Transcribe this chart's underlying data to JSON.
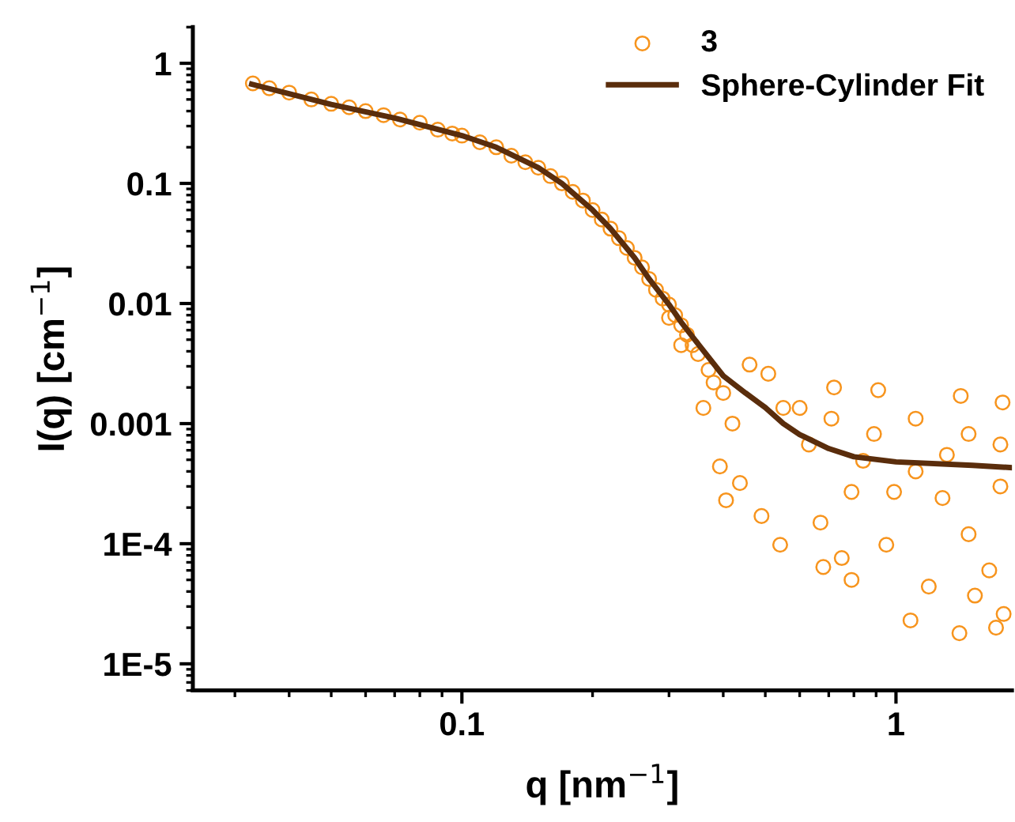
{
  "chart_data": {
    "type": "scatter",
    "xlabel": "q [nm$^{−1}$]",
    "ylabel": "I(q) [cm$^{−1}$]",
    "log": "xy",
    "grid": false,
    "legend": "top right",
    "xlim": [
      0.024,
      1.85
    ],
    "ylim": [
      6e-06,
      2
    ],
    "xticks": [
      0.1,
      1
    ],
    "yticks": [
      {
        "value": 1e-05,
        "label": "1E-5"
      },
      {
        "value": 0.0001,
        "label": "1E-4"
      },
      0.001,
      0.01,
      0.1,
      1
    ],
    "series": [
      {
        "name": "3",
        "marker": "circle",
        "color": "#f7941d",
        "x": [
          0.033,
          0.036,
          0.04,
          0.045,
          0.05,
          0.055,
          0.06,
          0.066,
          0.072,
          0.08,
          0.088,
          0.095,
          0.1,
          0.11,
          0.12,
          0.13,
          0.14,
          0.15,
          0.16,
          0.17,
          0.18,
          0.19,
          0.2,
          0.21,
          0.22,
          0.23,
          0.24,
          0.25,
          0.26,
          0.27,
          0.28,
          0.29,
          0.3,
          0.31,
          0.32,
          0.33,
          0.34,
          0.35,
          0.37,
          0.38,
          0.4,
          0.406,
          0.393,
          0.46,
          0.508,
          0.49,
          0.541,
          0.437,
          0.67,
          0.68,
          0.79,
          0.75,
          0.95,
          1.08,
          1.19,
          1.4,
          1.52,
          1.7,
          1.77,
          0.72,
          0.91,
          1.41,
          1.76,
          1.11,
          1.28,
          1.47,
          1.64,
          0.84,
          0.63,
          0.55,
          1.11,
          1.47,
          1.74,
          0.99,
          0.79,
          0.71,
          0.6,
          1.74,
          1.31,
          0.89,
          0.36,
          0.42,
          0.32,
          0.3
        ],
        "values": [
          0.68,
          0.62,
          0.57,
          0.5,
          0.46,
          0.43,
          0.4,
          0.37,
          0.34,
          0.32,
          0.28,
          0.26,
          0.25,
          0.22,
          0.2,
          0.17,
          0.15,
          0.135,
          0.115,
          0.1,
          0.085,
          0.072,
          0.06,
          0.05,
          0.042,
          0.035,
          0.029,
          0.024,
          0.02,
          0.016,
          0.013,
          0.011,
          0.0098,
          0.008,
          0.0066,
          0.0055,
          0.0045,
          0.0038,
          0.0028,
          0.0022,
          0.0018,
          0.00023,
          0.00044,
          0.0031,
          0.0026,
          0.00017,
          9.8e-05,
          0.00032,
          0.00015,
          6.4e-05,
          5e-05,
          7.6e-05,
          9.8e-05,
          2.3e-05,
          4.4e-05,
          1.8e-05,
          3.7e-05,
          2e-05,
          2.6e-05,
          0.002,
          0.0019,
          0.0017,
          0.0015,
          0.0004,
          0.00024,
          0.00012,
          6e-05,
          0.00049,
          0.00067,
          0.00135,
          0.0011,
          0.00082,
          0.00067,
          0.00027,
          0.00027,
          0.0011,
          0.00135,
          0.0003,
          0.00055,
          0.00082,
          0.00135,
          0.001,
          0.0045,
          0.0076
        ]
      },
      {
        "name": "Sphere-Cylinder Fit",
        "type": "line",
        "marker": "none",
        "line_style": "solid",
        "color": "#5a2d0c",
        "x": [
          0.0328,
          0.05,
          0.07,
          0.1,
          0.12,
          0.15,
          0.17,
          0.2,
          0.22,
          0.25,
          0.27,
          0.3,
          0.32,
          0.35,
          0.4,
          0.45,
          0.5,
          0.55,
          0.6,
          0.7,
          0.8,
          1,
          1.5,
          1.85
        ],
        "values": [
          0.67,
          0.455,
          0.35,
          0.25,
          0.2,
          0.135,
          0.1,
          0.06,
          0.042,
          0.024,
          0.016,
          0.0098,
          0.007,
          0.0046,
          0.0025,
          0.0018,
          0.00136,
          0.001,
          0.00081,
          0.00062,
          0.00053,
          0.00048,
          0.00045,
          0.00043
        ]
      }
    ]
  }
}
